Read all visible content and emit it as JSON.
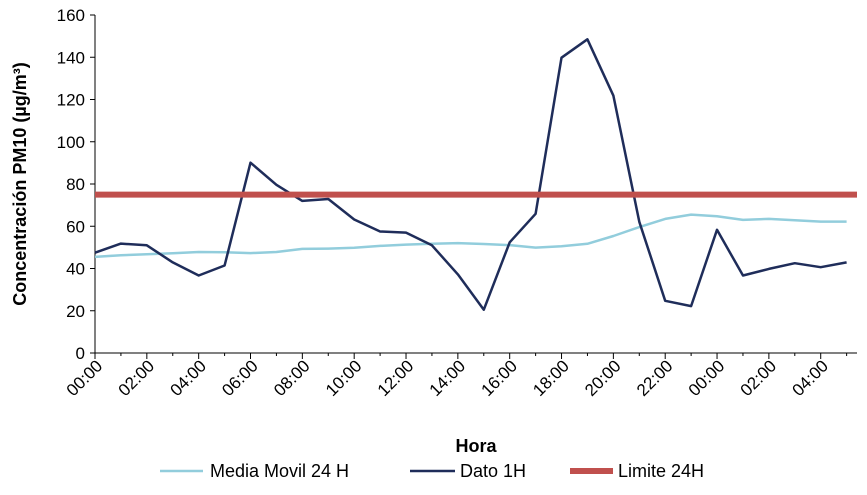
{
  "chart_data": {
    "type": "line",
    "title": "",
    "xlabel": "Hora",
    "ylabel": "Concentración PM10 (µg/m³)",
    "ylim": [
      0,
      160
    ],
    "yticks": [
      0,
      20,
      40,
      60,
      80,
      100,
      120,
      140,
      160
    ],
    "categories": [
      "00:00",
      "01:00",
      "02:00",
      "03:00",
      "04:00",
      "05:00",
      "06:00",
      "07:00",
      "08:00",
      "09:00",
      "10:00",
      "11:00",
      "12:00",
      "13:00",
      "14:00",
      "15:00",
      "16:00",
      "17:00",
      "18:00",
      "19:00",
      "20:00",
      "21:00",
      "22:00",
      "23:00",
      "00:00",
      "01:00",
      "02:00",
      "03:00",
      "04:00",
      "05:00"
    ],
    "tick_labels": [
      "00:00",
      "02:00",
      "04:00",
      "06:00",
      "08:00",
      "10:00",
      "12:00",
      "14:00",
      "16:00",
      "18:00",
      "20:00",
      "22:00",
      "00:00",
      "02:00",
      "04:00"
    ],
    "grid": false,
    "legend_position": "bottom",
    "series": [
      {
        "name": "Media Movil 24 H",
        "color": "#92cddc",
        "values": [
          45.5,
          46.3,
          46.7,
          47.2,
          47.8,
          47.7,
          47.3,
          47.8,
          49.3,
          49.4,
          49.8,
          50.7,
          51.3,
          51.7,
          52.0,
          51.6,
          51.1,
          49.9,
          50.5,
          51.7,
          55.4,
          59.6,
          63.5,
          65.5,
          64.7,
          63.0,
          63.5,
          62.8,
          62.2,
          62.2
        ]
      },
      {
        "name": "Dato 1H",
        "color": "#1f2d5a",
        "values": [
          47.5,
          51.8,
          51.0,
          42.9,
          36.7,
          41.4,
          90.1,
          79.6,
          72.0,
          72.9,
          63.2,
          57.5,
          57.0,
          51.0,
          37.2,
          20.5,
          52.4,
          65.9,
          139.8,
          148.5,
          121.8,
          62.1,
          24.7,
          22.2,
          58.3,
          36.7,
          39.8,
          42.5,
          40.6,
          42.9
        ]
      },
      {
        "name": "Limite 24H",
        "color": "#c0504d",
        "values": [
          75,
          75,
          75,
          75,
          75,
          75,
          75,
          75,
          75,
          75,
          75,
          75,
          75,
          75,
          75,
          75,
          75,
          75,
          75,
          75,
          75,
          75,
          75,
          75,
          75,
          75,
          75,
          75,
          75,
          75
        ]
      }
    ]
  }
}
